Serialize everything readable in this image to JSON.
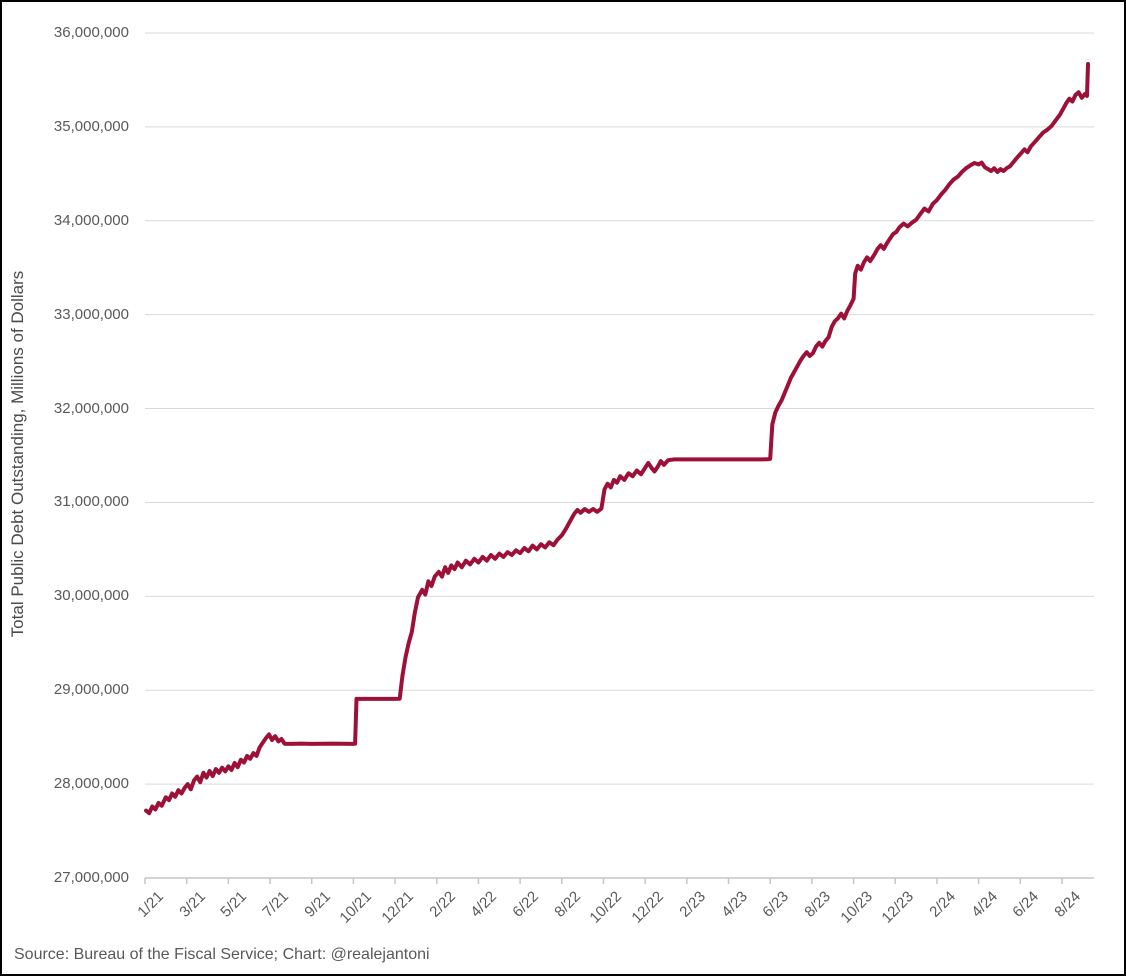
{
  "footer": {
    "source": "Source: Bureau of the Fiscal Service; Chart: @realejantoni"
  },
  "chart_data": {
    "type": "line",
    "title": "",
    "xlabel": "",
    "ylabel": "Total Public Debt Outstanding, Millions of Dollars",
    "series_name": "Total Public Debt Outstanding",
    "y_unit": "millions of USD",
    "x_unit": "months since Jan 2021",
    "ylim": [
      27000000,
      36000000
    ],
    "grid": true,
    "legend": "none",
    "line_color": "#9D1038",
    "grid_color": "#D9D9D9",
    "axis_color": "#C6C6C6",
    "text_color": "#595959",
    "yticks": [
      {
        "label": "27,000,000",
        "v": 27000000
      },
      {
        "label": "28,000,000",
        "v": 28000000
      },
      {
        "label": "29,000,000",
        "v": 29000000
      },
      {
        "label": "30,000,000",
        "v": 30000000
      },
      {
        "label": "31,000,000",
        "v": 31000000
      },
      {
        "label": "32,000,000",
        "v": 32000000
      },
      {
        "label": "33,000,000",
        "v": 33000000
      },
      {
        "label": "34,000,000",
        "v": 34000000
      },
      {
        "label": "35,000,000",
        "v": 35000000
      },
      {
        "label": "36,000,000",
        "v": 36000000
      }
    ],
    "xticks": [
      {
        "label": "1/21",
        "m": 0
      },
      {
        "label": "3/21",
        "m": 2
      },
      {
        "label": "5/21",
        "m": 4
      },
      {
        "label": "7/21",
        "m": 6
      },
      {
        "label": "9/21",
        "m": 8
      },
      {
        "label": "10/21",
        "m": 9
      },
      {
        "label": "12/21",
        "m": 11
      },
      {
        "label": "2/22",
        "m": 13
      },
      {
        "label": "4/22",
        "m": 15
      },
      {
        "label": "6/22",
        "m": 17
      },
      {
        "label": "8/22",
        "m": 19
      },
      {
        "label": "10/22",
        "m": 21
      },
      {
        "label": "12/22",
        "m": 23
      },
      {
        "label": "2/23",
        "m": 25
      },
      {
        "label": "4/23",
        "m": 27
      },
      {
        "label": "6/23",
        "m": 29
      },
      {
        "label": "8/23",
        "m": 31
      },
      {
        "label": "10/23",
        "m": 33
      },
      {
        "label": "12/23",
        "m": 35
      },
      {
        "label": "2/24",
        "m": 37
      },
      {
        "label": "4/24",
        "m": 39
      },
      {
        "label": "6/24",
        "m": 41
      },
      {
        "label": "8/24",
        "m": 43
      }
    ],
    "points": [
      [
        0.05,
        27718000
      ],
      [
        0.2,
        27690000
      ],
      [
        0.35,
        27762000
      ],
      [
        0.5,
        27730000
      ],
      [
        0.65,
        27800000
      ],
      [
        0.8,
        27770000
      ],
      [
        1.0,
        27860000
      ],
      [
        1.15,
        27830000
      ],
      [
        1.3,
        27900000
      ],
      [
        1.45,
        27865000
      ],
      [
        1.6,
        27935000
      ],
      [
        1.75,
        27900000
      ],
      [
        1.9,
        27960000
      ],
      [
        2.05,
        28000000
      ],
      [
        2.2,
        27945000
      ],
      [
        2.35,
        28040000
      ],
      [
        2.5,
        28080000
      ],
      [
        2.65,
        28020000
      ],
      [
        2.8,
        28120000
      ],
      [
        2.95,
        28070000
      ],
      [
        3.1,
        28140000
      ],
      [
        3.25,
        28085000
      ],
      [
        3.4,
        28160000
      ],
      [
        3.55,
        28120000
      ],
      [
        3.7,
        28175000
      ],
      [
        3.85,
        28135000
      ],
      [
        4.0,
        28190000
      ],
      [
        4.15,
        28150000
      ],
      [
        4.3,
        28225000
      ],
      [
        4.45,
        28180000
      ],
      [
        4.6,
        28260000
      ],
      [
        4.75,
        28230000
      ],
      [
        4.9,
        28300000
      ],
      [
        5.05,
        28270000
      ],
      [
        5.2,
        28330000
      ],
      [
        5.35,
        28300000
      ],
      [
        5.5,
        28390000
      ],
      [
        5.65,
        28440000
      ],
      [
        5.8,
        28490000
      ],
      [
        5.95,
        28530000
      ],
      [
        6.1,
        28470000
      ],
      [
        6.25,
        28510000
      ],
      [
        6.4,
        28455000
      ],
      [
        6.55,
        28480000
      ],
      [
        6.7,
        28430000
      ],
      [
        7.0,
        28428000
      ],
      [
        7.5,
        28431000
      ],
      [
        8.0,
        28428000
      ],
      [
        8.5,
        28431000
      ],
      [
        9.0,
        28428000
      ],
      [
        9.08,
        28430000
      ],
      [
        9.15,
        28908000
      ],
      [
        9.6,
        28908000
      ],
      [
        10.2,
        28908000
      ],
      [
        10.8,
        28908000
      ],
      [
        11.22,
        28910000
      ],
      [
        11.35,
        29150000
      ],
      [
        11.5,
        29350000
      ],
      [
        11.65,
        29500000
      ],
      [
        11.8,
        29620000
      ],
      [
        11.95,
        29830000
      ],
      [
        12.1,
        29990000
      ],
      [
        12.3,
        30070000
      ],
      [
        12.45,
        30020000
      ],
      [
        12.6,
        30160000
      ],
      [
        12.75,
        30110000
      ],
      [
        12.9,
        30210000
      ],
      [
        13.1,
        30260000
      ],
      [
        13.25,
        30210000
      ],
      [
        13.4,
        30310000
      ],
      [
        13.55,
        30250000
      ],
      [
        13.7,
        30330000
      ],
      [
        13.85,
        30290000
      ],
      [
        14.0,
        30360000
      ],
      [
        14.2,
        30310000
      ],
      [
        14.4,
        30380000
      ],
      [
        14.6,
        30340000
      ],
      [
        14.8,
        30400000
      ],
      [
        15.0,
        30360000
      ],
      [
        15.2,
        30420000
      ],
      [
        15.4,
        30380000
      ],
      [
        15.6,
        30440000
      ],
      [
        15.8,
        30400000
      ],
      [
        16.0,
        30455000
      ],
      [
        16.2,
        30420000
      ],
      [
        16.4,
        30470000
      ],
      [
        16.6,
        30440000
      ],
      [
        16.8,
        30490000
      ],
      [
        17.0,
        30460000
      ],
      [
        17.2,
        30515000
      ],
      [
        17.4,
        30480000
      ],
      [
        17.6,
        30540000
      ],
      [
        17.8,
        30500000
      ],
      [
        18.0,
        30555000
      ],
      [
        18.2,
        30520000
      ],
      [
        18.4,
        30575000
      ],
      [
        18.6,
        30545000
      ],
      [
        18.8,
        30605000
      ],
      [
        19.0,
        30650000
      ],
      [
        19.2,
        30720000
      ],
      [
        19.4,
        30800000
      ],
      [
        19.6,
        30880000
      ],
      [
        19.75,
        30920000
      ],
      [
        19.9,
        30890000
      ],
      [
        20.1,
        30930000
      ],
      [
        20.3,
        30900000
      ],
      [
        20.5,
        30930000
      ],
      [
        20.7,
        30900000
      ],
      [
        20.9,
        30935000
      ],
      [
        21.05,
        31140000
      ],
      [
        21.2,
        31200000
      ],
      [
        21.35,
        31160000
      ],
      [
        21.5,
        31240000
      ],
      [
        21.65,
        31210000
      ],
      [
        21.8,
        31280000
      ],
      [
        22.0,
        31240000
      ],
      [
        22.2,
        31310000
      ],
      [
        22.4,
        31280000
      ],
      [
        22.6,
        31340000
      ],
      [
        22.8,
        31300000
      ],
      [
        23.0,
        31370000
      ],
      [
        23.15,
        31420000
      ],
      [
        23.3,
        31370000
      ],
      [
        23.45,
        31330000
      ],
      [
        23.6,
        31380000
      ],
      [
        23.75,
        31440000
      ],
      [
        23.9,
        31400000
      ],
      [
        24.1,
        31450000
      ],
      [
        24.4,
        31458000
      ],
      [
        25.0,
        31458000
      ],
      [
        26.0,
        31458000
      ],
      [
        27.0,
        31458000
      ],
      [
        28.0,
        31458000
      ],
      [
        28.9,
        31460000
      ],
      [
        29.0,
        31465000
      ],
      [
        29.1,
        31830000
      ],
      [
        29.25,
        31960000
      ],
      [
        29.4,
        32030000
      ],
      [
        29.55,
        32090000
      ],
      [
        29.7,
        32170000
      ],
      [
        29.85,
        32250000
      ],
      [
        30.0,
        32330000
      ],
      [
        30.15,
        32390000
      ],
      [
        30.3,
        32450000
      ],
      [
        30.45,
        32510000
      ],
      [
        30.6,
        32560000
      ],
      [
        30.75,
        32600000
      ],
      [
        30.9,
        32560000
      ],
      [
        31.05,
        32590000
      ],
      [
        31.2,
        32660000
      ],
      [
        31.35,
        32700000
      ],
      [
        31.5,
        32660000
      ],
      [
        31.65,
        32720000
      ],
      [
        31.8,
        32760000
      ],
      [
        31.95,
        32870000
      ],
      [
        32.1,
        32930000
      ],
      [
        32.25,
        32960000
      ],
      [
        32.4,
        33010000
      ],
      [
        32.55,
        32960000
      ],
      [
        32.7,
        33040000
      ],
      [
        32.85,
        33100000
      ],
      [
        33.0,
        33170000
      ],
      [
        33.08,
        33440000
      ],
      [
        33.2,
        33520000
      ],
      [
        33.35,
        33480000
      ],
      [
        33.5,
        33560000
      ],
      [
        33.65,
        33610000
      ],
      [
        33.8,
        33570000
      ],
      [
        34.0,
        33640000
      ],
      [
        34.15,
        33700000
      ],
      [
        34.3,
        33740000
      ],
      [
        34.45,
        33700000
      ],
      [
        34.6,
        33760000
      ],
      [
        34.75,
        33810000
      ],
      [
        34.9,
        33860000
      ],
      [
        35.05,
        33880000
      ],
      [
        35.2,
        33930000
      ],
      [
        35.4,
        33970000
      ],
      [
        35.6,
        33940000
      ],
      [
        35.8,
        33980000
      ],
      [
        36.0,
        34010000
      ],
      [
        36.2,
        34070000
      ],
      [
        36.4,
        34130000
      ],
      [
        36.6,
        34100000
      ],
      [
        36.8,
        34180000
      ],
      [
        37.0,
        34220000
      ],
      [
        37.2,
        34280000
      ],
      [
        37.4,
        34330000
      ],
      [
        37.6,
        34390000
      ],
      [
        37.8,
        34440000
      ],
      [
        38.0,
        34470000
      ],
      [
        38.2,
        34520000
      ],
      [
        38.4,
        34560000
      ],
      [
        38.6,
        34590000
      ],
      [
        38.8,
        34615000
      ],
      [
        39.0,
        34600000
      ],
      [
        39.15,
        34620000
      ],
      [
        39.3,
        34570000
      ],
      [
        39.45,
        34550000
      ],
      [
        39.6,
        34530000
      ],
      [
        39.75,
        34560000
      ],
      [
        39.9,
        34520000
      ],
      [
        40.05,
        34550000
      ],
      [
        40.2,
        34530000
      ],
      [
        40.35,
        34560000
      ],
      [
        40.5,
        34580000
      ],
      [
        40.65,
        34620000
      ],
      [
        40.8,
        34660000
      ],
      [
        41.0,
        34710000
      ],
      [
        41.2,
        34760000
      ],
      [
        41.35,
        34730000
      ],
      [
        41.5,
        34790000
      ],
      [
        41.7,
        34840000
      ],
      [
        41.9,
        34890000
      ],
      [
        42.1,
        34940000
      ],
      [
        42.3,
        34970000
      ],
      [
        42.5,
        35010000
      ],
      [
        42.7,
        35070000
      ],
      [
        42.9,
        35130000
      ],
      [
        43.05,
        35190000
      ],
      [
        43.2,
        35250000
      ],
      [
        43.35,
        35300000
      ],
      [
        43.5,
        35270000
      ],
      [
        43.65,
        35340000
      ],
      [
        43.8,
        35370000
      ],
      [
        43.95,
        35310000
      ],
      [
        44.1,
        35350000
      ],
      [
        44.2,
        35330000
      ],
      [
        44.25,
        35670000
      ]
    ]
  }
}
